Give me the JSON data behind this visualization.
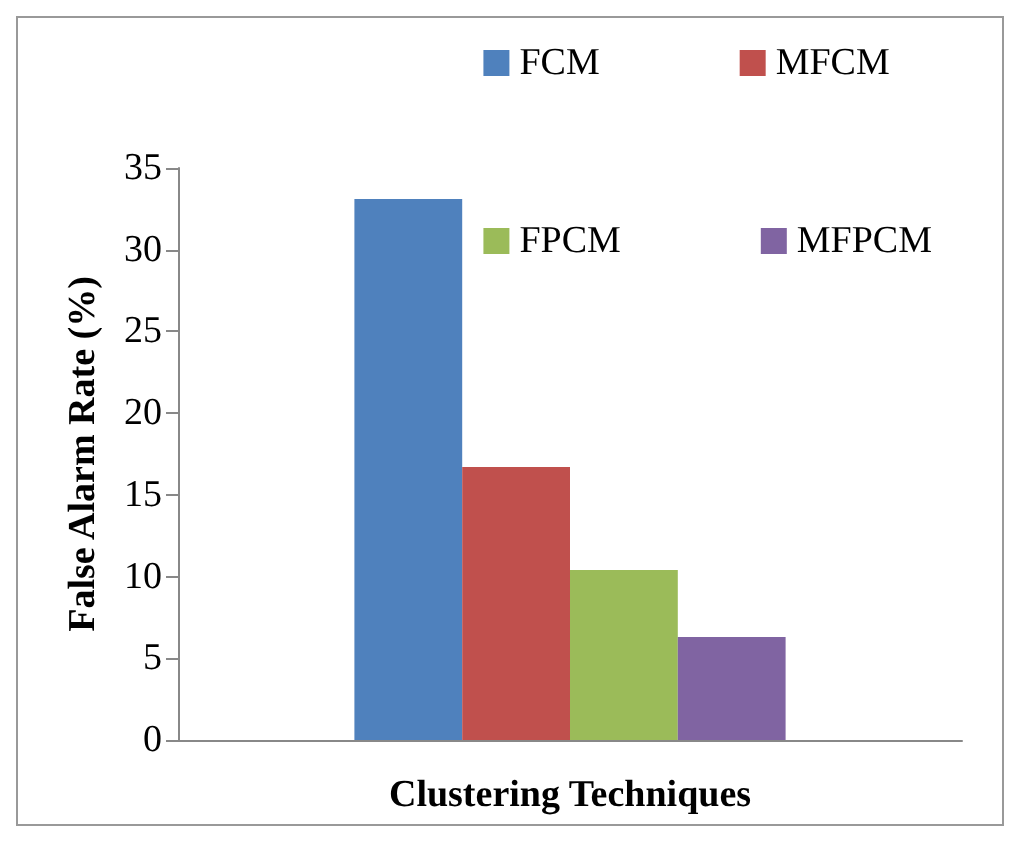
{
  "chart_data": {
    "type": "bar",
    "xlabel": "Clustering Techniques",
    "ylabel": "False Alarm Rate (%)",
    "categories": [
      null
    ],
    "series": [
      {
        "name": "FCM",
        "color": "#4f81bd",
        "values": [
          33.1
        ]
      },
      {
        "name": "MFCM",
        "color": "#c0504d",
        "values": [
          16.7
        ]
      },
      {
        "name": "FPCM",
        "color": "#9bbb59",
        "values": [
          10.4
        ]
      },
      {
        "name": "MFPCM",
        "color": "#8064a2",
        "values": [
          6.3
        ]
      }
    ],
    "ylim": [
      0,
      35
    ],
    "yticks": [
      0,
      5,
      10,
      15,
      20,
      25,
      30,
      35
    ],
    "grid": false,
    "legend": "top right"
  }
}
